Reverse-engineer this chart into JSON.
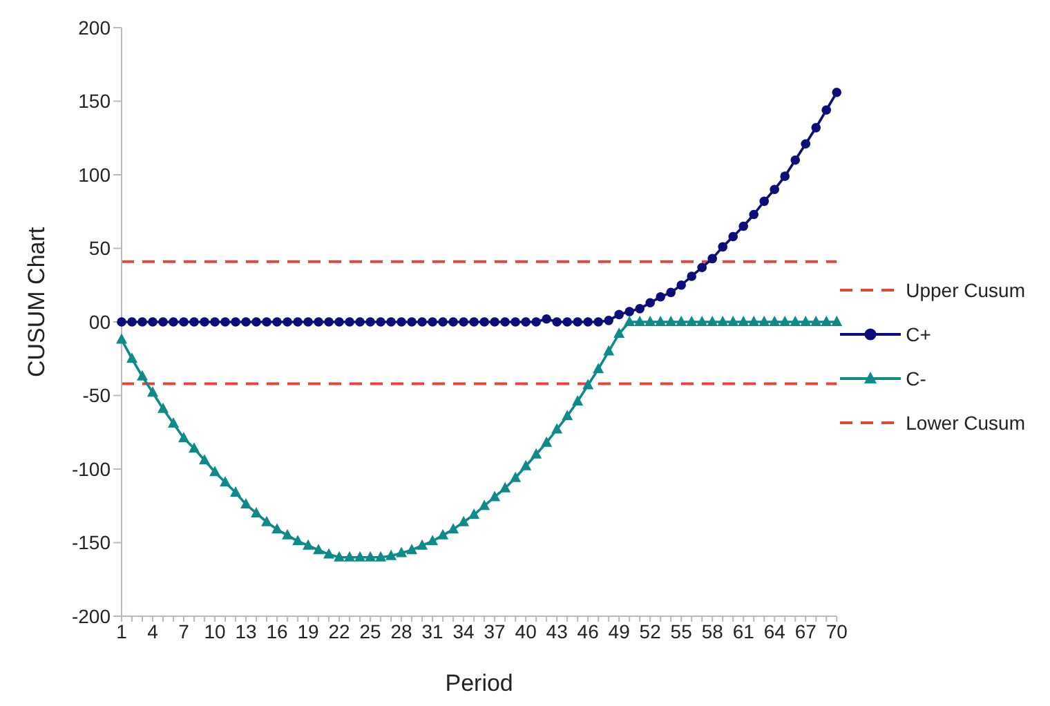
{
  "chart_data": {
    "type": "line",
    "xlabel": "Period",
    "ylabel": "CUSUM Chart",
    "categories": [
      "1",
      null,
      null,
      "4",
      null,
      null,
      "7",
      null,
      null,
      "10",
      null,
      null,
      "13",
      null,
      null,
      "16",
      null,
      null,
      "19",
      null,
      null,
      "22",
      null,
      null,
      "25",
      null,
      null,
      "28",
      null,
      null,
      "31",
      null,
      null,
      "34",
      null,
      null,
      "37",
      null,
      null,
      "40",
      null,
      null,
      "43",
      null,
      null,
      "46",
      null,
      null,
      "49",
      null,
      null,
      "52",
      null,
      null,
      "55",
      null,
      null,
      "58",
      null,
      null,
      "61",
      null,
      null,
      "64",
      null,
      null,
      "67",
      null,
      null,
      "70"
    ],
    "series": [
      {
        "name": "C+",
        "color": "#0d0d7a",
        "marker": "circle",
        "values": [
          0,
          0,
          0,
          0,
          0,
          0,
          0,
          0,
          0,
          0,
          0,
          0,
          0,
          0,
          0,
          0,
          0,
          0,
          0,
          0,
          0,
          0,
          0,
          0,
          0,
          0,
          0,
          0,
          0,
          0,
          0,
          0,
          0,
          0,
          0,
          0,
          0,
          0,
          0,
          0,
          0,
          2,
          0,
          0,
          0,
          0,
          0,
          1,
          5,
          7,
          9,
          13,
          17,
          20,
          25,
          31,
          37,
          43,
          51,
          58,
          65,
          73,
          82,
          90,
          99,
          110,
          121,
          132,
          144,
          156
        ]
      },
      {
        "name": "C-",
        "color": "#0f8a8a",
        "marker": "triangle",
        "values": [
          -12,
          -25,
          -37,
          -48,
          -59,
          -69,
          -79,
          -86,
          -94,
          -102,
          -109,
          -116,
          -124,
          -130,
          -136,
          -141,
          -145,
          -149,
          -152,
          -155,
          -158,
          -160,
          -160,
          -160,
          -160,
          -160,
          -159,
          -157,
          -155,
          -152,
          -149,
          -145,
          -141,
          -136,
          -131,
          -125,
          -119,
          -113,
          -106,
          -98,
          -90,
          -82,
          -73,
          -64,
          -54,
          -43,
          -32,
          -20,
          -8,
          0,
          0,
          0,
          0,
          0,
          0,
          0,
          0,
          0,
          0,
          0,
          0,
          0,
          0,
          0,
          0,
          0,
          0,
          0,
          0,
          0
        ]
      }
    ],
    "ref_lines": [
      {
        "axis": "y",
        "value": 41,
        "label": "Upper Cusum",
        "color": "#e0453e",
        "line_style": "dashed"
      },
      {
        "axis": "y",
        "value": -42,
        "label": "Lower Cusum",
        "color": "#e0453e",
        "line_style": "dashed"
      }
    ],
    "ylim": [
      -200,
      200
    ],
    "yticks": [
      -200,
      -150,
      -100,
      -50,
      {
        "value": 0,
        "label": "00"
      },
      50,
      100,
      150,
      200
    ],
    "grid": false,
    "legend": "right",
    "line_style": "solid"
  }
}
